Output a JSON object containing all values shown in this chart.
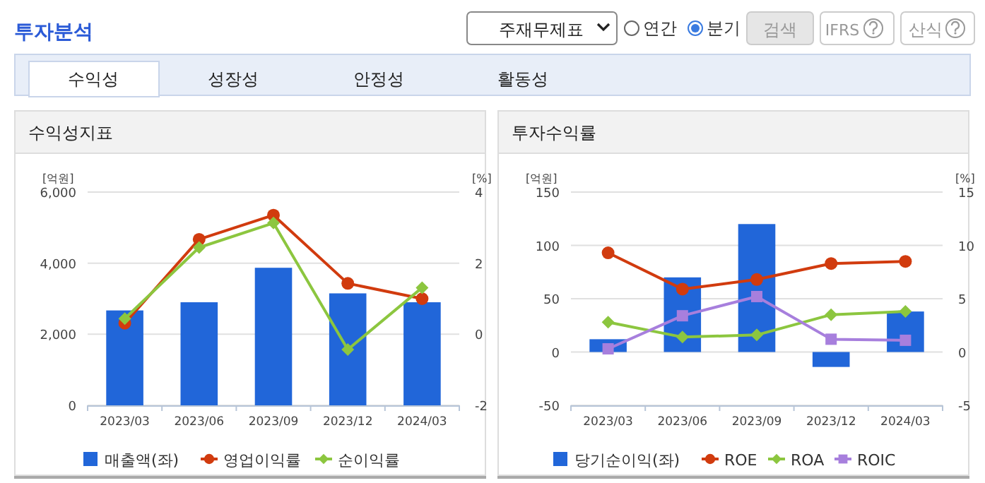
{
  "chart_data": [
    {
      "type": "other",
      "title": "투자분석",
      "annotations": [
        "주재무제표",
        "연간",
        "분기",
        "검색",
        "IFRS",
        "산식",
        "수익성",
        "성장성",
        "안정성",
        "활동성"
      ]
    },
    {
      "type": "bar",
      "title": "수익성지표",
      "ylabel": "[억원]",
      "y2label": "[%]",
      "categories": [
        "2023/03",
        "2023/06",
        "2023/09",
        "2023/12",
        "2024/03"
      ],
      "ylim": [
        0,
        6000
      ],
      "yticks": [
        0,
        {
          "value": 2000,
          "label": "2,000"
        },
        {
          "value": 4000,
          "label": "4,000"
        },
        {
          "value": 6000,
          "label": "6,000"
        }
      ],
      "y2lim": [
        -2,
        4
      ],
      "y2ticks": [
        -2,
        0,
        2,
        4
      ],
      "grid": "y",
      "legend": "bottom",
      "series": [
        {
          "name": "매출액(좌)",
          "type": "bar",
          "color": "#2166d9",
          "values": [
            2670,
            2900,
            3870,
            3150,
            2900
          ]
        },
        {
          "name": "영업이익률",
          "type": "line",
          "axis": "y2",
          "marker": "circle",
          "color": "#d13b0e",
          "values": [
            0.31,
            2.67,
            3.35,
            1.43,
            1.0
          ]
        },
        {
          "name": "순이익률",
          "type": "line",
          "axis": "y2",
          "marker": "diamond",
          "color": "#8cc63f",
          "values": [
            0.44,
            2.44,
            3.13,
            -0.43,
            1.31
          ]
        }
      ]
    },
    {
      "type": "bar",
      "title": "투자수익률",
      "ylabel": "[억원]",
      "y2label": "[%]",
      "categories": [
        "2023/03",
        "2023/06",
        "2023/09",
        "2023/12",
        "2024/03"
      ],
      "ylim": [
        -50,
        150
      ],
      "yticks": [
        -50,
        0,
        50,
        100,
        150
      ],
      "y2lim": [
        -5,
        15
      ],
      "y2ticks": [
        -5,
        0,
        5,
        10,
        15
      ],
      "grid": "y",
      "legend": "bottom",
      "series": [
        {
          "name": "당기순이익(좌)",
          "type": "bar",
          "color": "#2166d9",
          "values": [
            12,
            70,
            120,
            -14,
            38
          ]
        },
        {
          "name": "ROE",
          "type": "line",
          "axis": "y2",
          "marker": "circle",
          "color": "#d13b0e",
          "values": [
            9.3,
            5.9,
            6.8,
            8.3,
            8.5
          ]
        },
        {
          "name": "ROA",
          "type": "line",
          "axis": "y2",
          "marker": "diamond",
          "color": "#8cc63f",
          "values": [
            2.8,
            1.4,
            1.6,
            3.5,
            3.8
          ]
        },
        {
          "name": "ROIC",
          "type": "line",
          "axis": "y2",
          "marker": "square",
          "color": "#a77fdd",
          "values": [
            0.3,
            3.4,
            5.2,
            1.2,
            1.1
          ]
        }
      ]
    }
  ]
}
